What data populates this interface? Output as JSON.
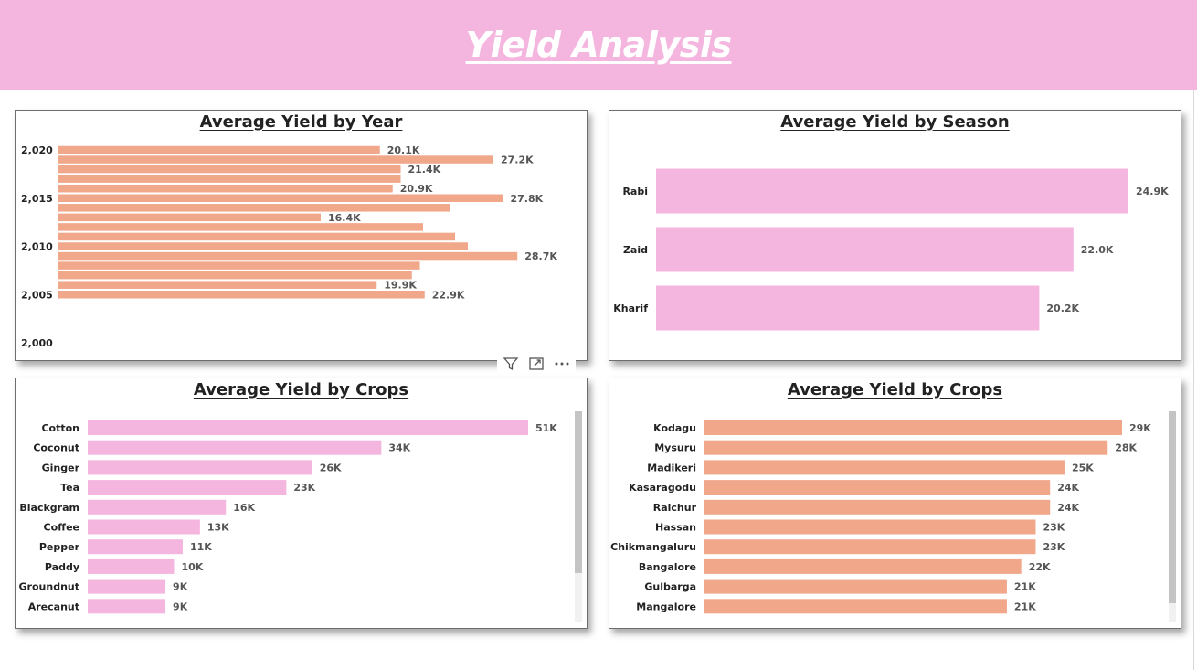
{
  "header": {
    "title": "Yield Analysis"
  },
  "colors": {
    "header_bg": "#f4b5df",
    "pink_bar": "#f4b5df",
    "salmon_bar": "#f0a78a"
  },
  "toolbar": {
    "icons": [
      "filter-icon",
      "focus-mode-icon",
      "more-options-icon"
    ]
  },
  "panels": {
    "year": {
      "title": "Average Yield by Year"
    },
    "season": {
      "title": "Average Yield by Season"
    },
    "crops": {
      "title": "Average Yield by Crops"
    },
    "districts": {
      "title": "Average Yield by Crops"
    }
  },
  "chart_data": [
    {
      "id": "year",
      "type": "bar",
      "orientation": "horizontal",
      "title": "Average Yield by Year",
      "y_ticks": [
        "2,020",
        "2,015",
        "2,010",
        "2,005",
        "2,000"
      ],
      "y_tick_values": [
        2020,
        2015,
        2010,
        2005,
        2000
      ],
      "ylim": [
        2000,
        2020
      ],
      "x_max": 30000,
      "color": "#f0a78a",
      "points": [
        {
          "year": 2020,
          "value": 20100,
          "label": "20.1K"
        },
        {
          "year": 2019,
          "value": 27200,
          "label": "27.2K"
        },
        {
          "year": 2018,
          "value": 21400,
          "label": "21.4K"
        },
        {
          "year": 2017,
          "value": 21400,
          "label": ""
        },
        {
          "year": 2016,
          "value": 20900,
          "label": "20.9K"
        },
        {
          "year": 2015,
          "value": 27800,
          "label": "27.8K"
        },
        {
          "year": 2014,
          "value": 24500,
          "label": ""
        },
        {
          "year": 2013,
          "value": 16400,
          "label": "16.4K"
        },
        {
          "year": 2012,
          "value": 22800,
          "label": ""
        },
        {
          "year": 2011,
          "value": 24800,
          "label": ""
        },
        {
          "year": 2010,
          "value": 25600,
          "label": ""
        },
        {
          "year": 2009,
          "value": 28700,
          "label": "28.7K"
        },
        {
          "year": 2008,
          "value": 22600,
          "label": ""
        },
        {
          "year": 2007,
          "value": 22100,
          "label": ""
        },
        {
          "year": 2006,
          "value": 19900,
          "label": "19.9K"
        },
        {
          "year": 2005,
          "value": 22900,
          "label": "22.9K"
        }
      ]
    },
    {
      "id": "season",
      "type": "bar",
      "orientation": "horizontal",
      "title": "Average Yield by Season",
      "x_max": 24900,
      "color": "#f4b5df",
      "categories": [
        "Rabi",
        "Zaid",
        "Kharif"
      ],
      "values": [
        24900,
        22000,
        20200
      ],
      "labels": [
        "24.9K",
        "22.0K",
        "20.2K"
      ]
    },
    {
      "id": "crops",
      "type": "bar",
      "orientation": "horizontal",
      "title": "Average Yield by Crops",
      "x_max": 51000,
      "color": "#f4b5df",
      "categories": [
        "Cotton",
        "Coconut",
        "Ginger",
        "Tea",
        "Blackgram",
        "Coffee",
        "Pepper",
        "Paddy",
        "Groundnut",
        "Arecanut"
      ],
      "values": [
        51000,
        34000,
        26000,
        23000,
        16000,
        13000,
        11000,
        10000,
        9000,
        9000
      ],
      "labels": [
        "51K",
        "34K",
        "26K",
        "23K",
        "16K",
        "13K",
        "11K",
        "10K",
        "9K",
        "9K"
      ]
    },
    {
      "id": "districts",
      "type": "bar",
      "orientation": "horizontal",
      "title": "Average Yield by Crops",
      "x_max": 29000,
      "color": "#f0a78a",
      "categories": [
        "Kodagu",
        "Mysuru",
        "Madikeri",
        "Kasaragodu",
        "Raichur",
        "Hassan",
        "Chikmangaluru",
        "Bangalore",
        "Gulbarga",
        "Mangalore"
      ],
      "values": [
        29000,
        28000,
        25000,
        24000,
        24000,
        23000,
        23000,
        22000,
        21000,
        21000
      ],
      "labels": [
        "29K",
        "28K",
        "25K",
        "24K",
        "24K",
        "23K",
        "23K",
        "22K",
        "21K",
        "21K"
      ]
    }
  ]
}
